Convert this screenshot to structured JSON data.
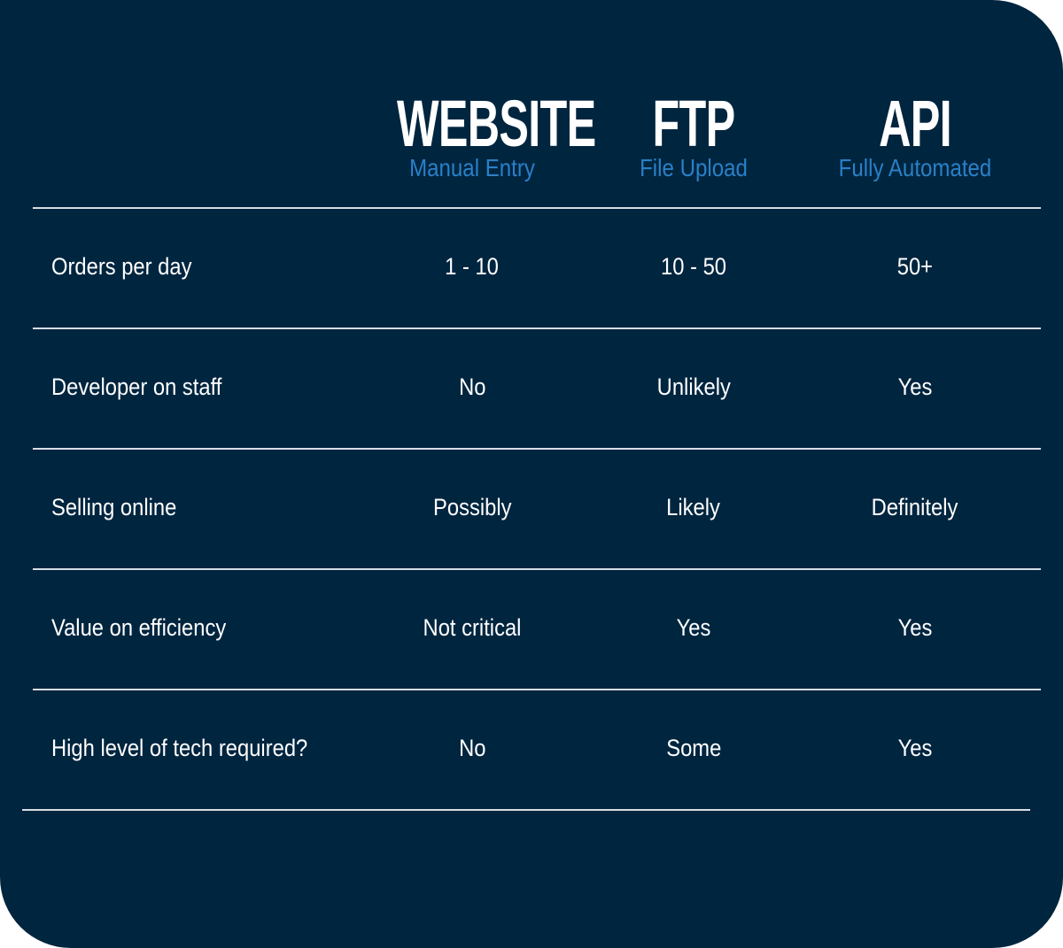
{
  "colors": {
    "background": "#00253f",
    "subtitle": "#2a80c8",
    "text": "#ffffff",
    "divider": "#d8dde2"
  },
  "columns": [
    {
      "title": "WEBSITE",
      "subtitle": "Manual Entry"
    },
    {
      "title": "FTP",
      "subtitle": "File Upload"
    },
    {
      "title": "API",
      "subtitle": "Fully Automated"
    }
  ],
  "rows": [
    {
      "label": "Orders per day",
      "values": [
        "1 - 10",
        "10 - 50",
        "50+"
      ]
    },
    {
      "label": "Developer on staff",
      "values": [
        "No",
        "Unlikely",
        "Yes"
      ]
    },
    {
      "label": "Selling online",
      "values": [
        "Possibly",
        "Likely",
        "Definitely"
      ]
    },
    {
      "label": "Value on efficiency",
      "values": [
        "Not critical",
        "Yes",
        "Yes"
      ]
    },
    {
      "label": "High level of tech required?",
      "values": [
        "No",
        "Some",
        "Yes"
      ]
    }
  ]
}
